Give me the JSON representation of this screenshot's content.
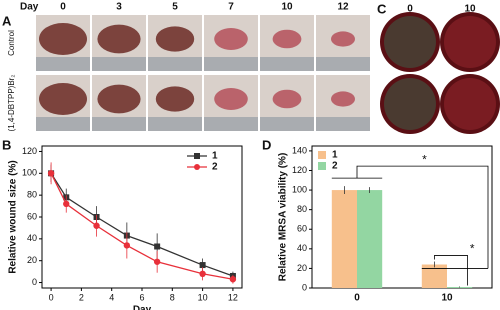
{
  "panels": {
    "a": {
      "label": "A",
      "day_header": "Day",
      "days": [
        "0",
        "3",
        "5",
        "7",
        "10",
        "12"
      ],
      "rows": [
        "Control",
        "(1,4-DBTPP)Br₂"
      ]
    },
    "c": {
      "label": "C",
      "days": [
        "0",
        "10"
      ]
    }
  },
  "chart_data": [
    {
      "type": "line",
      "panel_label": "B",
      "x": [
        0,
        1,
        3,
        5,
        7,
        10,
        12
      ],
      "xlabel": "Day",
      "ylabel": "Relative wound size (%)",
      "xlim": [
        -0.6,
        12.6
      ],
      "ylim": [
        -5,
        125
      ],
      "xticks": [
        0,
        2,
        4,
        6,
        8,
        10,
        12
      ],
      "yticks": [
        0,
        20,
        40,
        60,
        80,
        100,
        120
      ],
      "legend": "upper right",
      "series": [
        {
          "name": "1",
          "color": "#333333",
          "marker": "square",
          "values": [
            100,
            78,
            60,
            43,
            33,
            16,
            6
          ],
          "errors": [
            8,
            8,
            10,
            12,
            12,
            6,
            4
          ]
        },
        {
          "name": "2",
          "color": "#e8303a",
          "marker": "circle",
          "values": [
            100,
            72,
            52,
            34,
            19,
            8,
            3
          ],
          "errors": [
            10,
            8,
            10,
            12,
            10,
            6,
            4
          ]
        }
      ]
    },
    {
      "type": "bar",
      "panel_label": "D",
      "categories": [
        "0",
        "10"
      ],
      "ylabel": "Relative MRSA viability (%)",
      "ylim": [
        0,
        145
      ],
      "yticks": [
        0,
        20,
        40,
        60,
        80,
        100,
        120,
        140
      ],
      "legend": "upper left",
      "annotations": [
        "*",
        "*"
      ],
      "series": [
        {
          "name": "1",
          "color": "#f7c08c",
          "values": [
            100,
            24
          ],
          "errors": [
            4,
            3
          ]
        },
        {
          "name": "2",
          "color": "#93d6a2",
          "values": [
            100,
            1
          ],
          "errors": [
            3,
            0.5
          ]
        }
      ]
    }
  ]
}
